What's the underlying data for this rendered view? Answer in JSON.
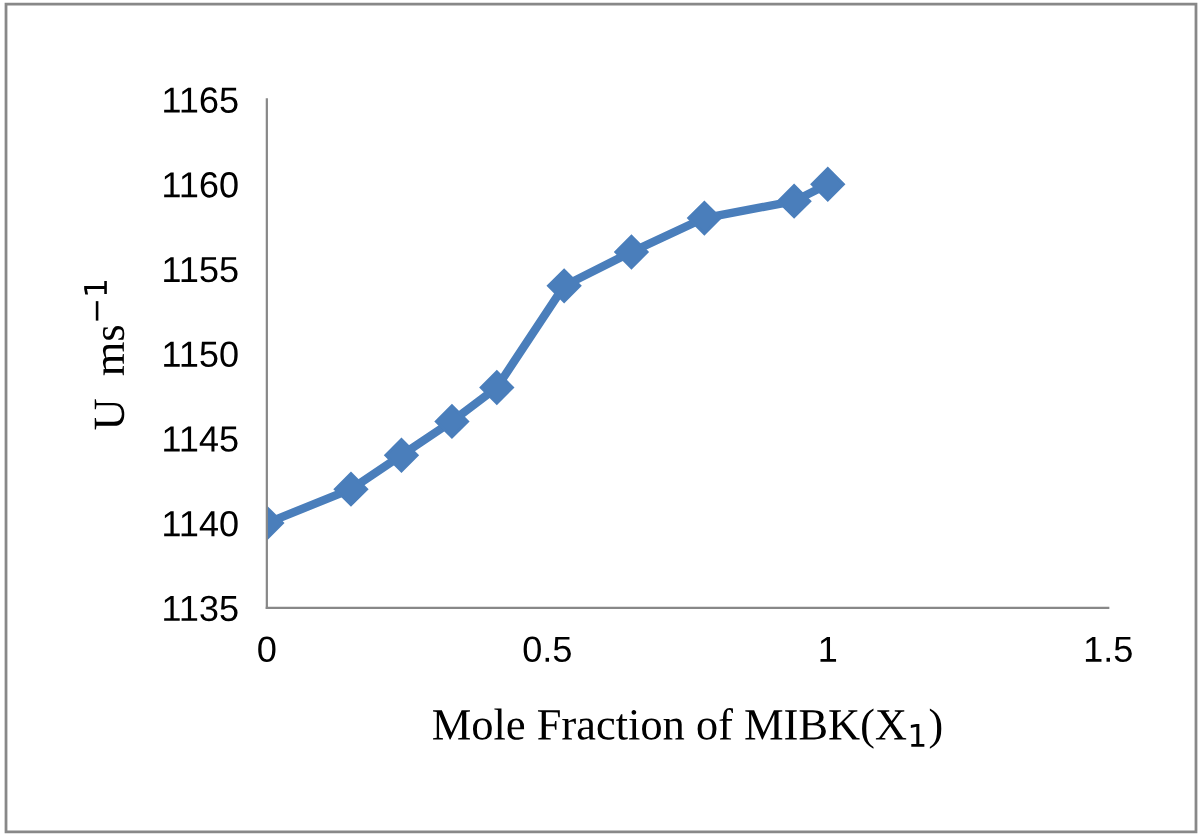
{
  "chart_data": {
    "type": "line",
    "xlabel": "Mole Fraction of MIBK(X$_{1}$)",
    "ylabel": "U  ms$^{−1}$",
    "series": [
      {
        "color": "#4a7ebb",
        "x": [
          0,
          0.15,
          0.24,
          0.33,
          0.41,
          0.53,
          0.65,
          0.78,
          0.94,
          1.0
        ],
        "values": [
          1140,
          1142,
          1144,
          1146,
          1148,
          1154,
          1156,
          1158,
          1159,
          1160
        ]
      }
    ],
    "xlim": [
      0,
      1.5
    ],
    "xticks": [
      0,
      0.5,
      1,
      1.5
    ],
    "ylim": [
      1135,
      1165
    ],
    "yticks": [
      1135,
      1140,
      1145,
      1150,
      1155,
      1160,
      1165
    ],
    "marker": "diamond",
    "line_style": "solid",
    "grid": false,
    "legend": false
  }
}
